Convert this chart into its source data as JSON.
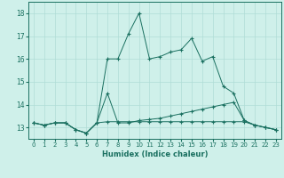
{
  "xlabel": "Humidex (Indice chaleur)",
  "bg_color": "#cff0ea",
  "grid_color": "#b0ddd6",
  "line_color": "#1a7060",
  "xlim": [
    -0.5,
    23.5
  ],
  "ylim": [
    12.5,
    18.5
  ],
  "yticks": [
    13,
    14,
    15,
    16,
    17,
    18
  ],
  "xticks": [
    0,
    1,
    2,
    3,
    4,
    5,
    6,
    7,
    8,
    9,
    10,
    11,
    12,
    13,
    14,
    15,
    16,
    17,
    18,
    19,
    20,
    21,
    22,
    23
  ],
  "series": [
    {
      "x": [
        0,
        1,
        2,
        3,
        4,
        5,
        6,
        7,
        8,
        9,
        10,
        11,
        12,
        13,
        14,
        15,
        16,
        17,
        18,
        19,
        20,
        21,
        22,
        23
      ],
      "y": [
        13.2,
        13.1,
        13.2,
        13.2,
        12.9,
        12.75,
        13.2,
        16.0,
        16.0,
        17.1,
        18.0,
        16.0,
        16.1,
        16.3,
        16.4,
        16.9,
        15.9,
        16.1,
        14.8,
        14.5,
        13.3,
        13.1,
        13.0,
        12.9
      ]
    },
    {
      "x": [
        0,
        1,
        2,
        3,
        4,
        5,
        6,
        7,
        8,
        9,
        10,
        11,
        12,
        13,
        14,
        15,
        16,
        17,
        18,
        19,
        20,
        21,
        22,
        23
      ],
      "y": [
        13.2,
        13.1,
        13.2,
        13.2,
        12.9,
        12.75,
        13.2,
        14.5,
        13.2,
        13.2,
        13.3,
        13.35,
        13.4,
        13.5,
        13.6,
        13.7,
        13.8,
        13.9,
        14.0,
        14.1,
        13.3,
        13.1,
        13.0,
        12.9
      ]
    },
    {
      "x": [
        0,
        1,
        2,
        3,
        4,
        5,
        6,
        7,
        8,
        9,
        10,
        11,
        12,
        13,
        14,
        15,
        16,
        17,
        18,
        19,
        20,
        21,
        22,
        23
      ],
      "y": [
        13.2,
        13.1,
        13.2,
        13.2,
        12.9,
        12.75,
        13.2,
        13.25,
        13.25,
        13.25,
        13.25,
        13.25,
        13.25,
        13.25,
        13.25,
        13.25,
        13.25,
        13.25,
        13.25,
        13.25,
        13.25,
        13.1,
        13.0,
        12.9
      ]
    }
  ]
}
